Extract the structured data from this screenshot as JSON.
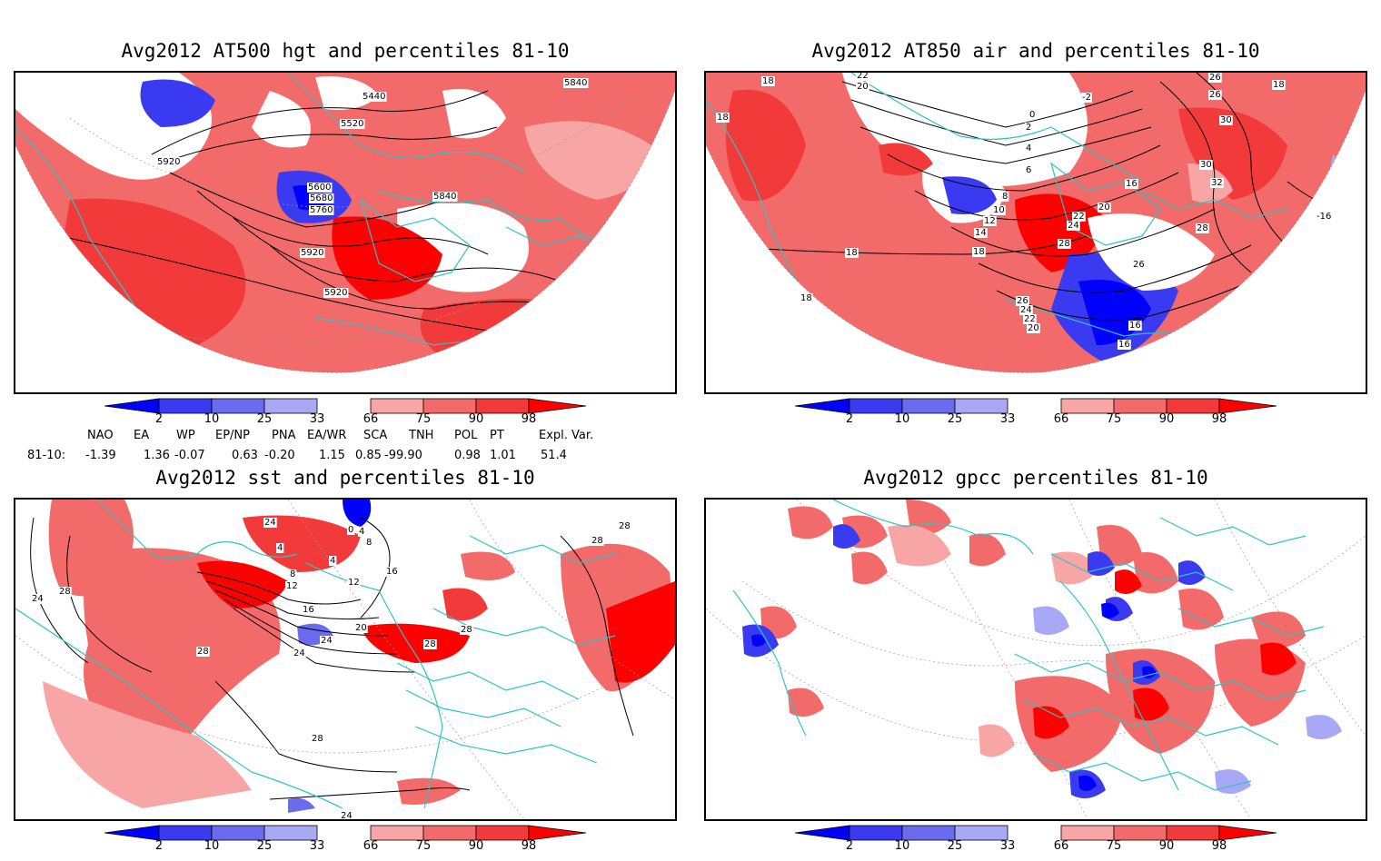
{
  "panels": [
    {
      "title": "Avg2012 AT500 hgt and percentiles 81-10",
      "contour_labels": [
        "5840",
        "5440",
        "5520",
        "5920",
        "5600",
        "5680",
        "5760",
        "5840",
        "5920",
        "5920"
      ]
    },
    {
      "title": "Avg2012 AT850 air and percentiles 81-10",
      "contour_labels": [
        "18",
        "22",
        "20",
        "-2",
        "26",
        "26",
        "18",
        "0",
        "2",
        "4",
        "30",
        "18",
        "6",
        "16",
        "30",
        "8",
        "32",
        "10",
        "22",
        "20",
        "12",
        "24",
        "-16",
        "14",
        "18",
        "28",
        "18",
        "28",
        "26",
        "18",
        "26",
        "24",
        "22",
        "20",
        "16",
        "16"
      ]
    },
    {
      "title": "Avg2012 sst and percentiles 81-10",
      "contour_labels": [
        "24",
        "0",
        "4",
        "28",
        "24",
        "28",
        "4",
        "8",
        "4",
        "8",
        "28",
        "12",
        "16",
        "12",
        "16",
        "28",
        "20",
        "24",
        "28",
        "28",
        "28",
        "24",
        "24"
      ]
    },
    {
      "title": "Avg2012 gpcc percentiles 81-10",
      "contour_labels": []
    }
  ],
  "colorbar": {
    "labels": [
      "2",
      "10",
      "25",
      "33",
      "66",
      "75",
      "90",
      "98"
    ],
    "colors": {
      "dark_blue": "#0000ff",
      "blue": "#3a3af0",
      "mid_blue": "#6b6bef",
      "light_blue": "#a8a8f5",
      "white": "#ffffff",
      "light_red": "#f8a5a5",
      "mid_red": "#f26a6a",
      "red": "#f23a3a",
      "dark_red": "#ff0000"
    }
  },
  "index_table": {
    "headers": [
      "NAO",
      "EA",
      "WP",
      "EP/NP",
      "PNA",
      "EA/WR",
      "SCA",
      "TNH",
      "POL",
      "PT",
      "Expl. Var."
    ],
    "row_label": "81-10:",
    "values": [
      "-1.39",
      "1.36",
      "-0.07",
      "0.63",
      "-0.20",
      "1.15",
      "0.85",
      "-99.90",
      "0.98",
      "1.01",
      "51.4"
    ]
  },
  "colors": {
    "coastline": "#2ec4c4",
    "contour": "#000000",
    "grid": "#9a9a9a"
  }
}
